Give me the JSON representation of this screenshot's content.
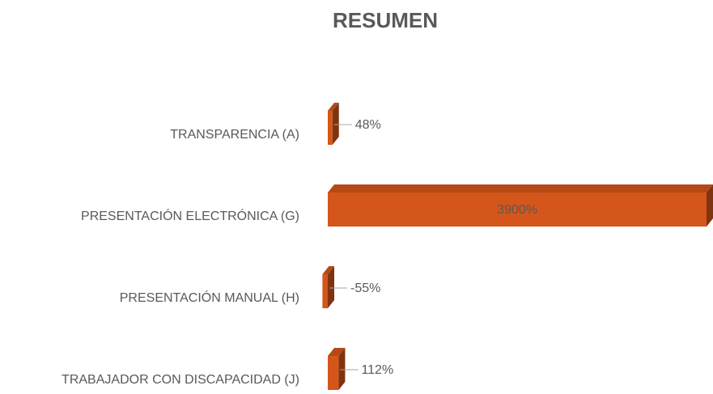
{
  "chart_data": {
    "type": "bar3d_horizontal",
    "title": "RESUMEN",
    "categories": [
      "TRANSPARENCIA (A)",
      "PRESENTACIÓN ELECTRÓNICA (G)",
      "PRESENTACIÓN MANUAL (H)",
      "TRABAJADOR CON DISCAPACIDAD (J)"
    ],
    "values": [
      48,
      3900,
      -55,
      112
    ],
    "value_labels": [
      "48%",
      "3900%",
      "-55%",
      "112%"
    ],
    "color": "#d4561a"
  }
}
